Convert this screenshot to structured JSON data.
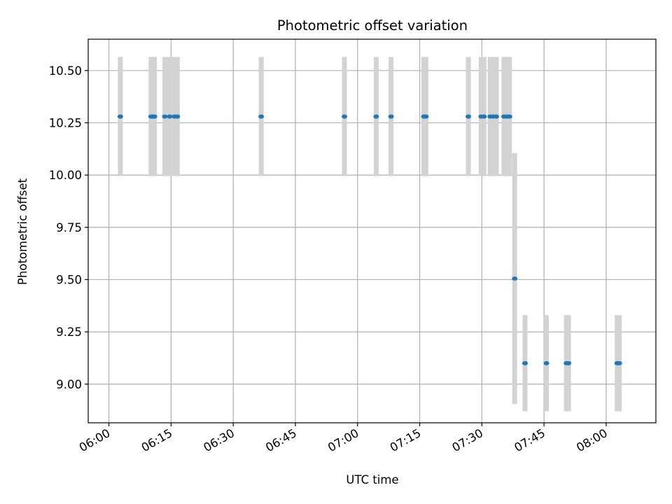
{
  "chart_data": {
    "type": "scatter",
    "title": "Photometric offset variation",
    "xlabel": "UTC time",
    "ylabel": "Photometric offset",
    "xlim": [
      "05:55",
      "08:12"
    ],
    "ylim": [
      8.815,
      10.65
    ],
    "grid": true,
    "x_ticks": [
      "06:00",
      "06:15",
      "06:30",
      "06:45",
      "07:00",
      "07:15",
      "07:30",
      "07:45",
      "08:00"
    ],
    "y_ticks": [
      "9.00",
      "9.25",
      "9.50",
      "9.75",
      "10.00",
      "10.25",
      "10.50"
    ],
    "colors": {
      "point": "#1f77b4",
      "errorbar": "#d3d3d3",
      "grid": "#b0b0b0"
    },
    "points": [
      {
        "x": "06:02:45",
        "y": 10.28,
        "err": 0.285
      },
      {
        "x": "06:10:10",
        "y": 10.28,
        "err": 0.285
      },
      {
        "x": "06:10:35",
        "y": 10.28,
        "err": 0.285
      },
      {
        "x": "06:11:00",
        "y": 10.28,
        "err": 0.285
      },
      {
        "x": "06:13:30",
        "y": 10.28,
        "err": 0.285
      },
      {
        "x": "06:14:40",
        "y": 10.28,
        "err": 0.285
      },
      {
        "x": "06:15:50",
        "y": 10.28,
        "err": 0.285
      },
      {
        "x": "06:16:30",
        "y": 10.28,
        "err": 0.285
      },
      {
        "x": "06:36:45",
        "y": 10.28,
        "err": 0.285
      },
      {
        "x": "06:56:50",
        "y": 10.28,
        "err": 0.285
      },
      {
        "x": "07:04:30",
        "y": 10.28,
        "err": 0.285
      },
      {
        "x": "07:08:05",
        "y": 10.28,
        "err": 0.285
      },
      {
        "x": "07:16:00",
        "y": 10.28,
        "err": 0.285
      },
      {
        "x": "07:16:30",
        "y": 10.28,
        "err": 0.285
      },
      {
        "x": "07:26:45",
        "y": 10.28,
        "err": 0.285
      },
      {
        "x": "07:29:50",
        "y": 10.28,
        "err": 0.285
      },
      {
        "x": "07:30:30",
        "y": 10.28,
        "err": 0.285
      },
      {
        "x": "07:32:00",
        "y": 10.28,
        "err": 0.285
      },
      {
        "x": "07:32:45",
        "y": 10.28,
        "err": 0.285
      },
      {
        "x": "07:33:30",
        "y": 10.28,
        "err": 0.285
      },
      {
        "x": "07:35:20",
        "y": 10.28,
        "err": 0.285
      },
      {
        "x": "07:36:00",
        "y": 10.28,
        "err": 0.285
      },
      {
        "x": "07:36:40",
        "y": 10.28,
        "err": 0.285
      },
      {
        "x": "07:37:55",
        "y": 9.505,
        "err": 0.6
      },
      {
        "x": "07:40:25",
        "y": 9.1,
        "err": 0.23
      },
      {
        "x": "07:45:35",
        "y": 9.1,
        "err": 0.23
      },
      {
        "x": "07:50:25",
        "y": 9.1,
        "err": 0.23
      },
      {
        "x": "07:50:55",
        "y": 9.1,
        "err": 0.23
      },
      {
        "x": "08:02:40",
        "y": 9.1,
        "err": 0.23
      },
      {
        "x": "08:03:10",
        "y": 9.1,
        "err": 0.23
      }
    ]
  }
}
